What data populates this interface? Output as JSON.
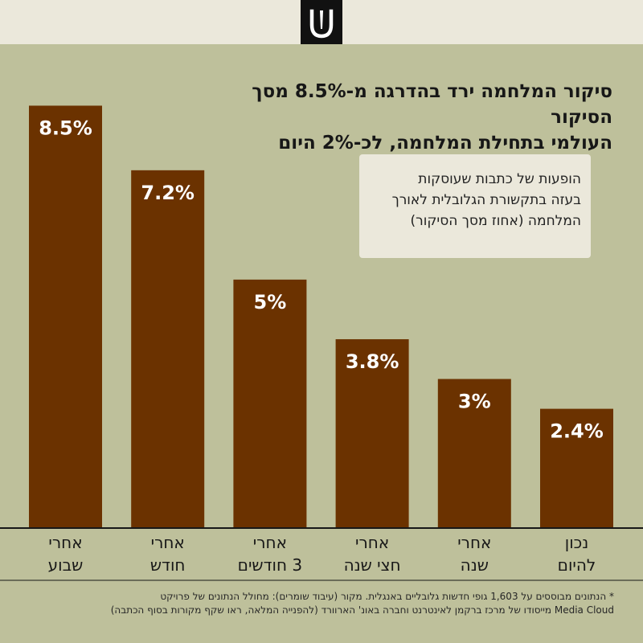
{
  "title": "סיקור המלחמה ירד בהדרגה מ-8.5% מסך הסיקור\nהעולמי בתחילת המלחמה, לכ-2% היום",
  "legend_text": "הופעות של כתבות שעוסקות\nבעזה בתקשורת הגלובלית לאורך\nהמלחמה (אחוז מסך הסיקור)",
  "footnote": "* הנתונים מבוססים על 1,603 גופי חדשות גלובליים באנגלית. מקור (עיבוד שומרים): מחולל הנתונים של פרויקט\nMedia Cloud מייסודו של מרכז ברקמן לאינטרנט וחברה באונ' הארוורד (להפנייה המלאה, ראו שקף מקורות בסוף הכתבה)",
  "logo": {
    "icon": "u-bell-logo-icon"
  },
  "colors": {
    "background": "#bec09b",
    "topbar": "#ebe8db",
    "bar": "#6b3200",
    "title_text": "#171717",
    "bar_label": "#ffffff",
    "axis": "#171717"
  },
  "chart_data": {
    "type": "bar",
    "categories": [
      "אחרי\nשבוע",
      "אחרי\nחודש",
      "אחרי\n3 חודשים",
      "אחרי\nחצי שנה",
      "אחרי\nשנה",
      "נכון\nלהיום"
    ],
    "values": [
      8.5,
      7.2,
      5,
      3.8,
      3,
      2.4
    ],
    "data_labels": [
      "8.5%",
      "7.2%",
      "5%",
      "3.8%",
      "3%",
      "2.4%"
    ],
    "ylim": [
      0,
      9.3
    ],
    "grid": false,
    "legend_placement": "top-right"
  }
}
